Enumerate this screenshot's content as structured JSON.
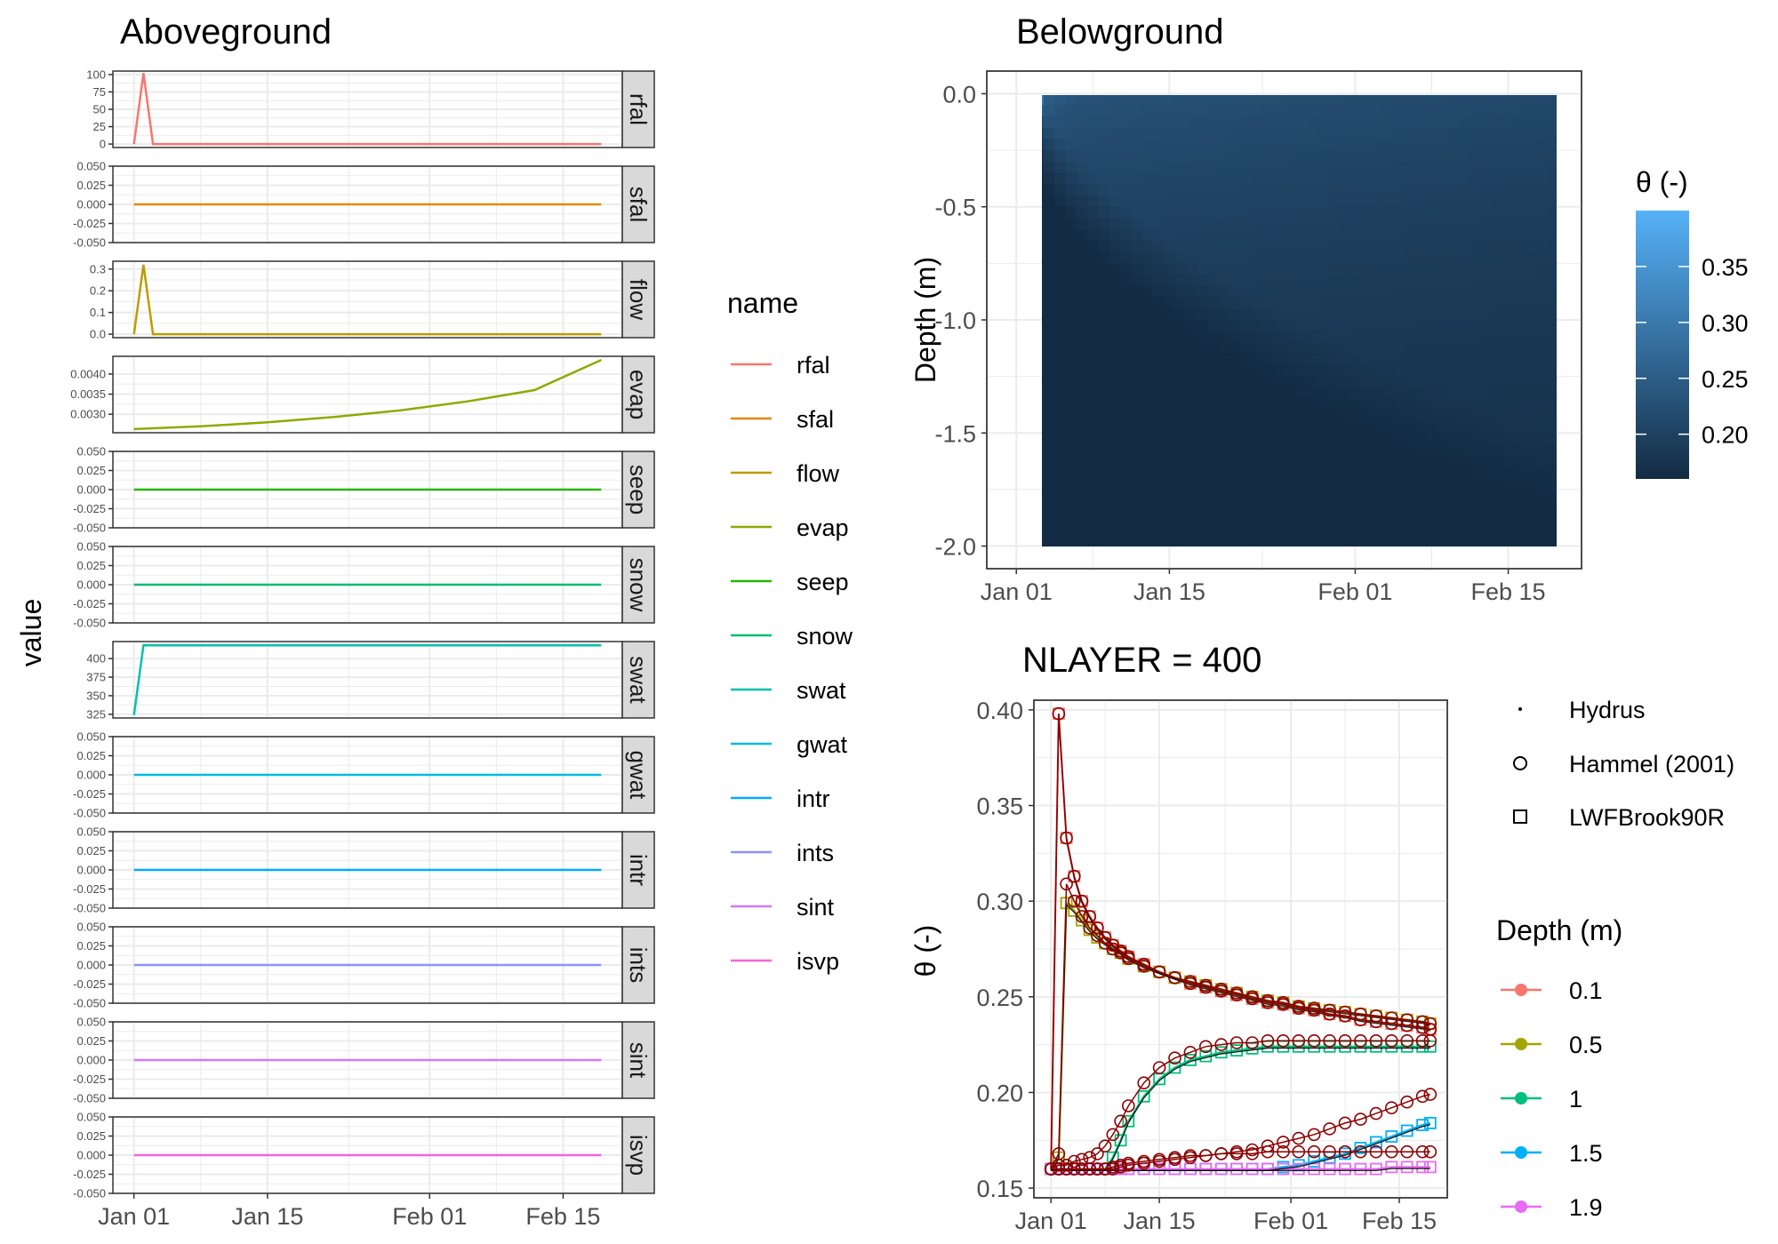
{
  "colors": {
    "rfal": "#F8766D",
    "sfal": "#E18A00",
    "flow": "#BE9C00",
    "evap": "#8CAB00",
    "seep": "#24B700",
    "snow": "#00BE70",
    "swat": "#00C1AB",
    "gwat": "#00BBDA",
    "intr": "#00ACFC",
    "ints": "#8B93FF",
    "sint": "#D575FE",
    "isvp": "#F962DD",
    "d01": "#F8766D",
    "d05": "#A3A500",
    "d1": "#00BF7D",
    "d15": "#00B0F6",
    "d19": "#E76BF3",
    "hammel": "#8B0000",
    "hydrus": "#000000",
    "theta_low": "#132B43",
    "theta_high": "#56B1F7",
    "panel_border": "#333333",
    "strip_fill": "#D9D9D9",
    "grid": "#EBEBEB"
  },
  "date_ticks": [
    "Jan 01",
    "Jan 15",
    "Feb 01",
    "Feb 15"
  ],
  "aboveground": {
    "title": "Aboveground",
    "ylabel": "value",
    "legend_title": "name",
    "x_range": [
      "Jan 01",
      "Feb 19"
    ],
    "panels": [
      {
        "name": "rfal",
        "ticks": [
          "0",
          "25",
          "50",
          "75",
          "100"
        ],
        "tick_values": [
          0,
          25,
          50,
          75,
          100
        ],
        "ylim": [
          -5,
          105
        ],
        "series": {
          "x": [
            "Jan 01",
            "Jan 02",
            "Jan 03",
            "Feb 19"
          ],
          "y": [
            0,
            102,
            0,
            0
          ]
        }
      },
      {
        "name": "sfal",
        "ticks": [
          "-0.050",
          "-0.025",
          "0.000",
          "0.025",
          "0.050"
        ],
        "tick_values": [
          -0.05,
          -0.025,
          0,
          0.025,
          0.05
        ],
        "ylim": [
          -0.05,
          0.05
        ],
        "series": {
          "x": [
            "Jan 01",
            "Feb 19"
          ],
          "y": [
            0,
            0
          ]
        }
      },
      {
        "name": "flow",
        "ticks": [
          "0.0",
          "0.1",
          "0.2",
          "0.3"
        ],
        "tick_values": [
          0,
          0.1,
          0.2,
          0.3
        ],
        "ylim": [
          -0.016,
          0.336
        ],
        "series": {
          "x": [
            "Jan 01",
            "Jan 02",
            "Jan 03",
            "Feb 19"
          ],
          "y": [
            0,
            0.32,
            0,
            0
          ]
        }
      },
      {
        "name": "evap",
        "ticks": [
          "0.0030",
          "0.0035",
          "0.0040"
        ],
        "tick_values": [
          0.003,
          0.0035,
          0.004
        ],
        "ylim": [
          0.00254,
          0.00444
        ],
        "series": {
          "x": [
            "Jan 01",
            "Jan 08",
            "Jan 15",
            "Jan 22",
            "Jan 29",
            "Feb 05",
            "Feb 12",
            "Feb 19"
          ],
          "y": [
            0.00263,
            0.0027,
            0.0028,
            0.00293,
            0.0031,
            0.00332,
            0.0036,
            0.00435
          ]
        }
      },
      {
        "name": "seep",
        "ticks": [
          "-0.050",
          "-0.025",
          "0.000",
          "0.025",
          "0.050"
        ],
        "tick_values": [
          -0.05,
          -0.025,
          0,
          0.025,
          0.05
        ],
        "ylim": [
          -0.05,
          0.05
        ],
        "series": {
          "x": [
            "Jan 01",
            "Feb 19"
          ],
          "y": [
            0,
            0
          ]
        }
      },
      {
        "name": "snow",
        "ticks": [
          "-0.050",
          "-0.025",
          "0.000",
          "0.025",
          "0.050"
        ],
        "tick_values": [
          -0.05,
          -0.025,
          0,
          0.025,
          0.05
        ],
        "ylim": [
          -0.05,
          0.05
        ],
        "series": {
          "x": [
            "Jan 01",
            "Feb 19"
          ],
          "y": [
            0,
            0
          ]
        }
      },
      {
        "name": "swat",
        "ticks": [
          "325",
          "350",
          "375",
          "400"
        ],
        "tick_values": [
          325,
          350,
          375,
          400
        ],
        "ylim": [
          320,
          423
        ],
        "series": {
          "x": [
            "Jan 01",
            "Jan 02",
            "Feb 19"
          ],
          "y": [
            324,
            418,
            418
          ]
        }
      },
      {
        "name": "gwat",
        "ticks": [
          "-0.050",
          "-0.025",
          "0.000",
          "0.025",
          "0.050"
        ],
        "tick_values": [
          -0.05,
          -0.025,
          0,
          0.025,
          0.05
        ],
        "ylim": [
          -0.05,
          0.05
        ],
        "series": {
          "x": [
            "Jan 01",
            "Feb 19"
          ],
          "y": [
            0,
            0
          ]
        }
      },
      {
        "name": "intr",
        "ticks": [
          "-0.050",
          "-0.025",
          "0.000",
          "0.025",
          "0.050"
        ],
        "tick_values": [
          -0.05,
          -0.025,
          0,
          0.025,
          0.05
        ],
        "ylim": [
          -0.05,
          0.05
        ],
        "series": {
          "x": [
            "Jan 01",
            "Feb 19"
          ],
          "y": [
            0,
            0
          ]
        }
      },
      {
        "name": "ints",
        "ticks": [
          "-0.050",
          "-0.025",
          "0.000",
          "0.025",
          "0.050"
        ],
        "tick_values": [
          -0.05,
          -0.025,
          0,
          0.025,
          0.05
        ],
        "ylim": [
          -0.05,
          0.05
        ],
        "series": {
          "x": [
            "Jan 01",
            "Feb 19"
          ],
          "y": [
            0,
            0
          ]
        }
      },
      {
        "name": "sint",
        "ticks": [
          "-0.050",
          "-0.025",
          "0.000",
          "0.025",
          "0.050"
        ],
        "tick_values": [
          -0.05,
          -0.025,
          0,
          0.025,
          0.05
        ],
        "ylim": [
          -0.05,
          0.05
        ],
        "series": {
          "x": [
            "Jan 01",
            "Feb 19"
          ],
          "y": [
            0,
            0
          ]
        }
      },
      {
        "name": "isvp",
        "ticks": [
          "-0.050",
          "-0.025",
          "0.000",
          "0.025",
          "0.050"
        ],
        "tick_values": [
          -0.05,
          -0.025,
          0,
          0.025,
          0.05
        ],
        "ylim": [
          -0.05,
          0.05
        ],
        "series": {
          "x": [
            "Jan 01",
            "Feb 19"
          ],
          "y": [
            0,
            0
          ]
        }
      }
    ],
    "legend_items": [
      "rfal",
      "sfal",
      "flow",
      "evap",
      "seep",
      "snow",
      "swat",
      "gwat",
      "intr",
      "ints",
      "sint",
      "isvp"
    ]
  },
  "belowground": {
    "title": "Belowground",
    "ylabel": "Depth (m)",
    "y_ticks": [
      "0.0",
      "-0.5",
      "-1.0",
      "-1.5",
      "-2.0"
    ],
    "y_tick_values": [
      0.0,
      -0.5,
      -1.0,
      -1.5,
      -2.0
    ],
    "ylim": [
      -2.0,
      0.0
    ],
    "x_range": [
      "Jan 01",
      "Feb 19"
    ],
    "colorbar_title": "θ (-)",
    "colorbar_ticks": [
      "0.35",
      "0.30",
      "0.25",
      "0.20"
    ],
    "colorbar_tick_values": [
      0.35,
      0.3,
      0.25,
      0.2
    ],
    "theta_range": [
      0.16,
      0.4
    ]
  },
  "nlayer": {
    "title": "NLAYER = 400",
    "ylabel": "θ (-)",
    "y_ticks": [
      "0.40",
      "0.35",
      "0.30",
      "0.25",
      "0.20",
      "0.15"
    ],
    "y_tick_values": [
      0.4,
      0.35,
      0.3,
      0.25,
      0.2,
      0.15
    ],
    "ylim": [
      0.15,
      0.4
    ],
    "x_range": [
      "Jan 01",
      "Feb 19"
    ],
    "shape_legend": [
      "Hydrus",
      "Hammel (2001)",
      "LWFBrook90R"
    ],
    "depth_legend_title": "Depth (m)",
    "depth_legend": [
      "0.1",
      "0.5",
      "1",
      "1.5",
      "1.9"
    ]
  },
  "chart_data": [
    {
      "type": "line",
      "title": "Aboveground",
      "ylabel": "value",
      "facets": [
        "rfal",
        "sfal",
        "flow",
        "evap",
        "seep",
        "snow",
        "swat",
        "gwat",
        "intr",
        "ints",
        "sint",
        "isvp"
      ],
      "notes_values": {
        "rfal_peak": 102,
        "flow_peak": 0.32,
        "swat_start": 324,
        "swat_plateau": 418,
        "evap_start": 0.00263,
        "evap_end": 0.00435
      }
    },
    {
      "type": "heatmap",
      "title": "Belowground",
      "ylabel": "Depth (m)",
      "x_range": [
        "Jan 01",
        "Feb 19"
      ],
      "y_range": [
        -2.0,
        0.0
      ],
      "value_range": [
        0.16,
        0.4
      ]
    },
    {
      "type": "line",
      "title": "NLAYER = 400",
      "ylabel": "θ (-)",
      "x_days": [
        0,
        1,
        2,
        3,
        4,
        5,
        6,
        7,
        8,
        9,
        10,
        12,
        14,
        16,
        18,
        20,
        22,
        24,
        26,
        28,
        30,
        32,
        34,
        36,
        38,
        40,
        42,
        44,
        46,
        48,
        49
      ],
      "series": [
        {
          "name": "0.1",
          "values": [
            0.16,
            0.398,
            0.333,
            0.313,
            0.3,
            0.292,
            0.286,
            0.281,
            0.277,
            0.274,
            0.271,
            0.267,
            0.263,
            0.26,
            0.257,
            0.255,
            0.253,
            0.251,
            0.249,
            0.247,
            0.246,
            0.244,
            0.243,
            0.241,
            0.24,
            0.238,
            0.237,
            0.236,
            0.235,
            0.234,
            0.233
          ]
        },
        {
          "name": "0.5",
          "values": [
            0.16,
            0.166,
            0.299,
            0.295,
            0.29,
            0.285,
            0.281,
            0.278,
            0.275,
            0.273,
            0.27,
            0.266,
            0.263,
            0.26,
            0.258,
            0.256,
            0.254,
            0.252,
            0.25,
            0.248,
            0.247,
            0.245,
            0.244,
            0.243,
            0.242,
            0.241,
            0.24,
            0.239,
            0.238,
            0.237,
            0.236
          ]
        },
        {
          "name": "1",
          "values": [
            0.16,
            0.16,
            0.16,
            0.16,
            0.16,
            0.16,
            0.16,
            0.16,
            0.166,
            0.175,
            0.185,
            0.198,
            0.207,
            0.213,
            0.217,
            0.219,
            0.221,
            0.222,
            0.223,
            0.224,
            0.224,
            0.224,
            0.224,
            0.224,
            0.224,
            0.224,
            0.224,
            0.224,
            0.224,
            0.224,
            0.224
          ]
        },
        {
          "name": "1.5",
          "values": [
            0.16,
            0.16,
            0.16,
            0.16,
            0.16,
            0.16,
            0.16,
            0.16,
            0.16,
            0.16,
            0.16,
            0.16,
            0.16,
            0.16,
            0.16,
            0.16,
            0.16,
            0.16,
            0.16,
            0.16,
            0.161,
            0.162,
            0.164,
            0.166,
            0.168,
            0.171,
            0.174,
            0.177,
            0.18,
            0.183,
            0.184
          ]
        },
        {
          "name": "1.9",
          "values": [
            0.16,
            0.16,
            0.16,
            0.16,
            0.16,
            0.16,
            0.16,
            0.16,
            0.16,
            0.16,
            0.16,
            0.16,
            0.16,
            0.16,
            0.16,
            0.16,
            0.16,
            0.16,
            0.16,
            0.16,
            0.16,
            0.16,
            0.16,
            0.16,
            0.16,
            0.16,
            0.16,
            0.161,
            0.161,
            0.161,
            0.161
          ]
        }
      ],
      "hammel": [
        {
          "depth": "0.1",
          "values": [
            0.16,
            0.398,
            0.333,
            0.313,
            0.3,
            0.292,
            0.286,
            0.281,
            0.277,
            0.274,
            0.271,
            0.267,
            0.263,
            0.26,
            0.257,
            0.255,
            0.253,
            0.251,
            0.249,
            0.247,
            0.246,
            0.244,
            0.243,
            0.241,
            0.24,
            0.238,
            0.237,
            0.236,
            0.235,
            0.234,
            0.233
          ]
        },
        {
          "depth": "0.5",
          "values": [
            0.16,
            0.168,
            0.309,
            0.3,
            0.292,
            0.286,
            0.282,
            0.278,
            0.275,
            0.273,
            0.27,
            0.266,
            0.263,
            0.26,
            0.258,
            0.256,
            0.254,
            0.252,
            0.25,
            0.248,
            0.247,
            0.245,
            0.244,
            0.243,
            0.242,
            0.241,
            0.24,
            0.239,
            0.238,
            0.237,
            0.236
          ]
        },
        {
          "depth": "1",
          "values": [
            0.16,
            0.162,
            0.162,
            0.164,
            0.165,
            0.166,
            0.168,
            0.172,
            0.178,
            0.185,
            0.193,
            0.205,
            0.213,
            0.218,
            0.221,
            0.224,
            0.225,
            0.226,
            0.226,
            0.227,
            0.227,
            0.227,
            0.227,
            0.227,
            0.227,
            0.227,
            0.227,
            0.227,
            0.227,
            0.227,
            0.227
          ]
        },
        {
          "depth": "1.5",
          "values": [
            0.16,
            0.16,
            0.16,
            0.16,
            0.16,
            0.16,
            0.16,
            0.16,
            0.16,
            0.161,
            0.162,
            0.163,
            0.164,
            0.165,
            0.166,
            0.167,
            0.168,
            0.169,
            0.17,
            0.172,
            0.174,
            0.176,
            0.178,
            0.181,
            0.184,
            0.186,
            0.189,
            0.192,
            0.195,
            0.198,
            0.199
          ]
        },
        {
          "depth": "1.9",
          "values": [
            0.16,
            0.16,
            0.16,
            0.16,
            0.16,
            0.16,
            0.16,
            0.16,
            0.161,
            0.162,
            0.163,
            0.164,
            0.165,
            0.166,
            0.167,
            0.167,
            0.168,
            0.168,
            0.168,
            0.169,
            0.169,
            0.169,
            0.169,
            0.169,
            0.169,
            0.169,
            0.169,
            0.169,
            0.169,
            0.169,
            0.169
          ]
        }
      ]
    }
  ]
}
